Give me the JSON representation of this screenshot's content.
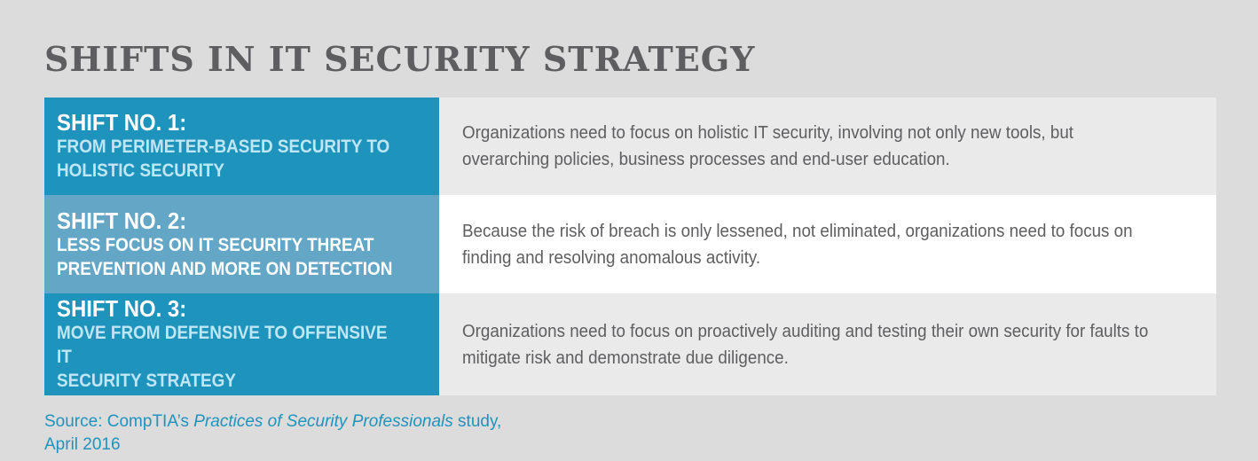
{
  "title": "SHIFTS IN IT SECURITY STRATEGY",
  "shifts": [
    {
      "number": "SHIFT NO. 1:",
      "title": "FROM PERIMETER-BASED SECURITY TO\nHOLISTIC SECURITY",
      "description": "Organizations need to focus on holistic IT security, involving not only new tools, but overarching policies, business processes and end-user education."
    },
    {
      "number": "SHIFT NO. 2:",
      "title": "LESS FOCUS ON IT SECURITY THREAT\nPREVENTION AND MORE ON DETECTION",
      "description": "Because the risk of breach is only lessened, not eliminated, organizations need to focus on finding and resolving anomalous activity."
    },
    {
      "number": "SHIFT NO. 3:",
      "title": "MOVE FROM DEFENSIVE TO OFFENSIVE IT\nSECURITY STRATEGY",
      "description": "Organizations need to focus on proactively auditing and testing their own security for faults to mitigate risk and demonstrate due diligence."
    }
  ],
  "source": {
    "prefix": "Source: CompTIA’s ",
    "study_name": "Practices of Security Professionals",
    "suffix": " study,",
    "date": "April 2016"
  },
  "colors": {
    "background": "#dcdcdd",
    "accent_blue": "#1e94bc",
    "light_blue": "#64a6c6",
    "title_grey": "#5e5e60",
    "row_grey": "#eaeaeb",
    "row_white": "#ffffff"
  }
}
